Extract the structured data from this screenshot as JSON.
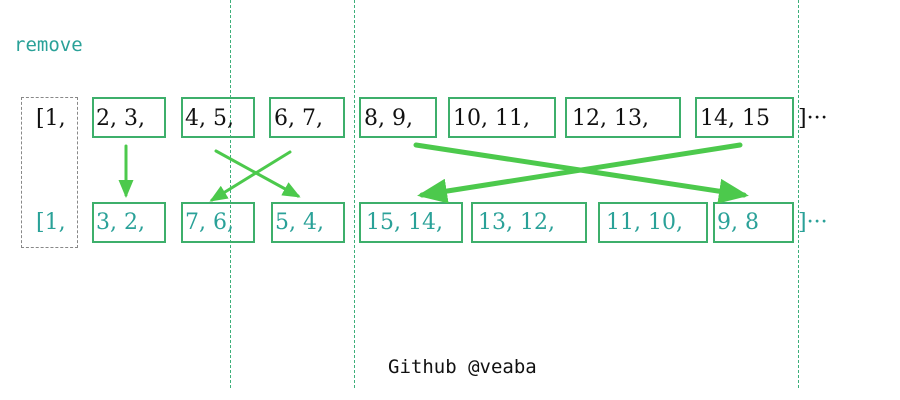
{
  "title": "remove",
  "credit": "Github @veaba",
  "row1": {
    "open": "[1,",
    "pairs": [
      "2,  3,",
      "4,  5,",
      "6,  7,",
      "8,  9,",
      "10,  11,",
      "12,  13,",
      "14,  15"
    ],
    "tail": "]···"
  },
  "row2": {
    "open": "[1,",
    "pairs": [
      "3,  2,",
      "7,  6,",
      "5,  4,",
      "15,  14,",
      "13,  12,",
      "11,  10,",
      "9,  8"
    ],
    "tail": "]···"
  },
  "colors": {
    "box": "#3daf6b",
    "arrow": "#4cc94c",
    "guide": "#3daf7a",
    "teal_text": "#2aa198",
    "dashed": "#888888"
  }
}
